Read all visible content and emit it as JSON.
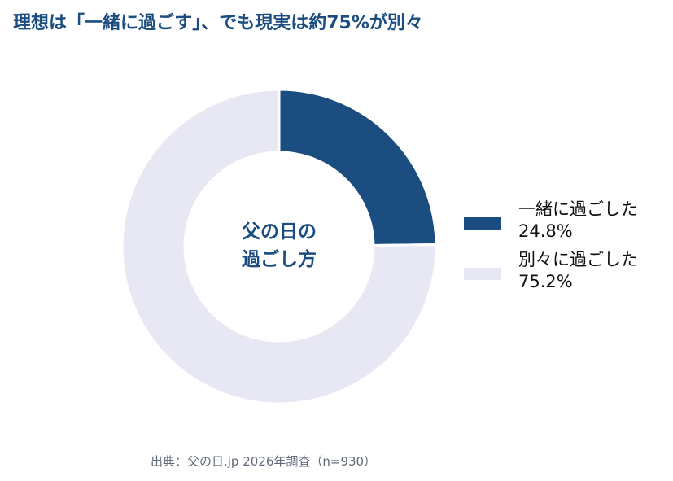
{
  "chart_data": {
    "type": "pie",
    "title": "理想は「一緒に過ごす」、でも現実は約75%が別々",
    "center_label": [
      "父の日の",
      "過ごし方"
    ],
    "categories": [
      "一緒に過ごした",
      "別々に過ごした"
    ],
    "values": [
      24.8,
      75.2
    ],
    "value_labels": [
      "24.8%",
      "75.2%"
    ],
    "colors": [
      "#1b4d80",
      "#e7e8f4"
    ],
    "legend_position": "right",
    "source": "出典：父の日.jp 2026年調査（n=930）"
  }
}
